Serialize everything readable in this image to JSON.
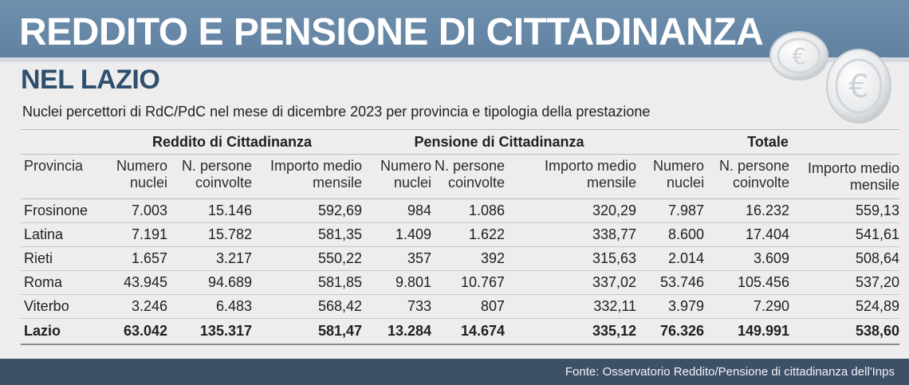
{
  "header": {
    "title": "REDDITO E PENSIONE DI CITTADINANZA",
    "subtitle": "NEL LAZIO",
    "description": "Nuclei percettori di RdC/PdC nel mese di dicembre 2023 per provincia e tipologia della prestazione"
  },
  "decoration": {
    "icon": "euro-coin-icon",
    "accent": "#5f809f",
    "subtitle_color": "#2f4f6d",
    "footer_color": "#3e5068"
  },
  "table": {
    "groups": [
      "Reddito di Cittadinanza",
      "Pensione di Cittadinanza",
      "Totale"
    ],
    "columns": [
      [
        "Provincia"
      ],
      [
        "Numero",
        "nuclei"
      ],
      [
        "N. persone",
        "coinvolte"
      ],
      [
        "Importo medio",
        "mensile"
      ],
      [
        "Numero",
        "nuclei"
      ],
      [
        "N. persone",
        "coinvolte"
      ],
      [
        "Importo medio",
        "mensile"
      ],
      [
        "Numero",
        "nuclei"
      ],
      [
        "N. persone",
        "coinvolte"
      ],
      [
        "Importo medio",
        "mensile"
      ]
    ],
    "rows": [
      [
        "Frosinone",
        "7.003",
        "15.146",
        "592,69",
        "984",
        "1.086",
        "320,29",
        "7.987",
        "16.232",
        "559,13"
      ],
      [
        "Latina",
        "7.191",
        "15.782",
        "581,35",
        "1.409",
        "1.622",
        "338,77",
        "8.600",
        "17.404",
        "541,61"
      ],
      [
        "Rieti",
        "1.657",
        "3.217",
        "550,22",
        "357",
        "392",
        "315,63",
        "2.014",
        "3.609",
        "508,64"
      ],
      [
        "Roma",
        "43.945",
        "94.689",
        "581,85",
        "9.801",
        "10.767",
        "337,02",
        "53.746",
        "105.456",
        "537,20"
      ],
      [
        "Viterbo",
        "3.246",
        "6.483",
        "568,42",
        "733",
        "807",
        "332,11",
        "3.979",
        "7.290",
        "524,89"
      ]
    ],
    "total": [
      "Lazio",
      "63.042",
      "135.317",
      "581,47",
      "13.284",
      "14.674",
      "335,12",
      "76.326",
      "149.991",
      "538,60"
    ]
  },
  "footer": {
    "source": "Fonte: Osservatorio Reddito/Pensione di cittadinanza dell'Inps"
  }
}
